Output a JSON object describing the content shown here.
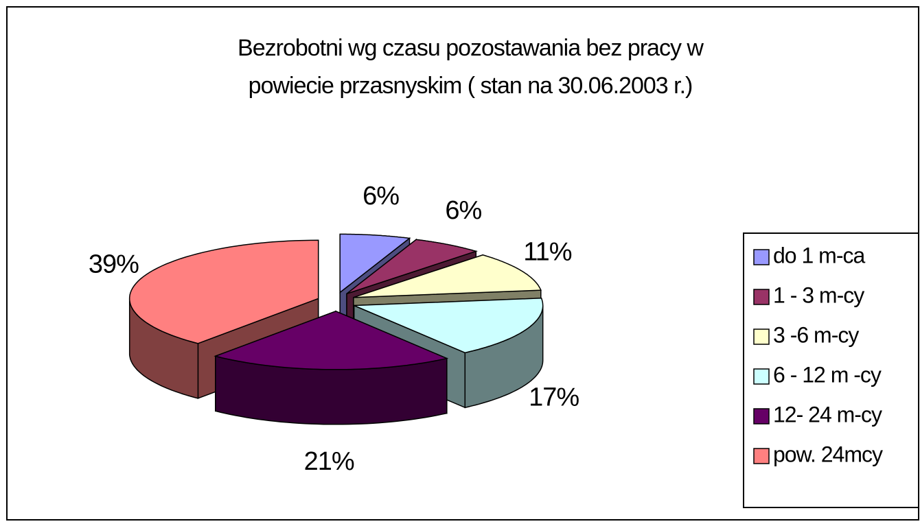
{
  "chart_data": {
    "type": "pie",
    "title": [
      "Bezrobotni wg czasu pozostawania bez pracy w",
      "powiecie przasnyskim ( stan na 30.06.2003 r.)"
    ],
    "categories": [
      "do 1 m-ca",
      "1 - 3 m-cy",
      "3 -6 m-cy",
      "6 - 12 m -cy",
      "12- 24 m-cy",
      "pow. 24mcy"
    ],
    "values": [
      6,
      6,
      11,
      17,
      21,
      39
    ],
    "value_labels": [
      "6%",
      "6%",
      "11%",
      "17%",
      "21%",
      "39%"
    ],
    "colors": [
      "#9999ff",
      "#993366",
      "#ffffcc",
      "#ccffff",
      "#660066",
      "#ff8080"
    ],
    "legend": "right"
  }
}
